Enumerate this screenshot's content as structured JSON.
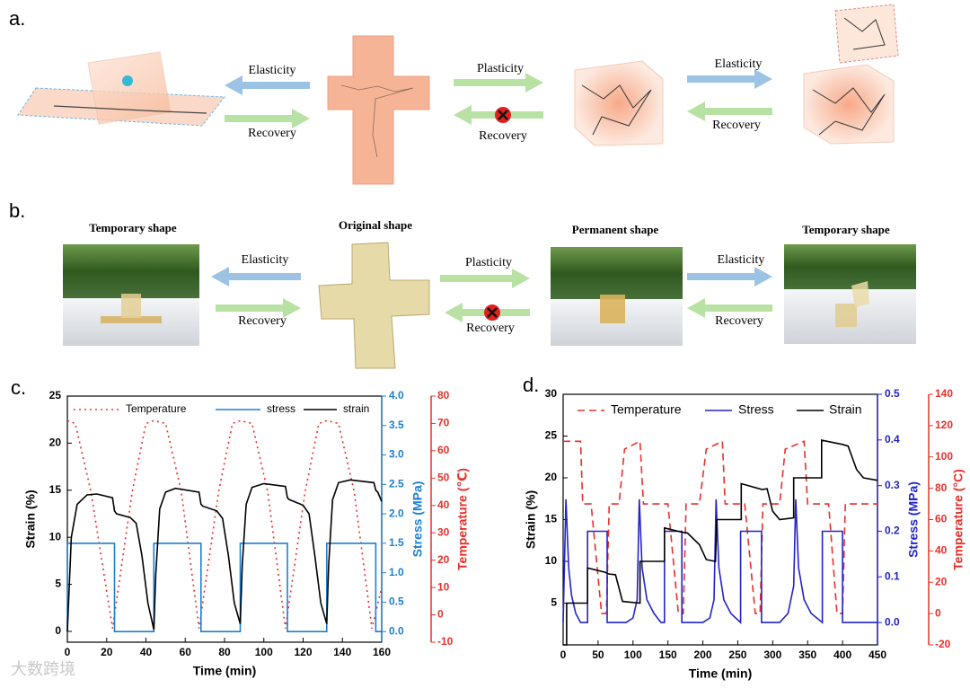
{
  "panels": {
    "a": {
      "label": "a.",
      "arrow_labels": [
        "Elasticity",
        "Recovery",
        "Plasticity",
        "Recovery",
        "Elasticity",
        "Recovery"
      ]
    },
    "b": {
      "label": "b.",
      "shape_labels": [
        "Temporary shape",
        "Original shape",
        "Permanent shape",
        "Temporary shape"
      ],
      "arrow_labels": [
        "Elasticity",
        "Recovery",
        "Plasticity",
        "Recovery",
        "Elasticity",
        "Recovery"
      ]
    }
  },
  "watermark": "大数跨境",
  "chart_data": [
    {
      "type": "line",
      "panel_label": "c.",
      "xlabel": "Time (min)",
      "ylabel": "Strain (%)",
      "y2label": "Stress (MPa)",
      "y3label": "Temperature (℃)",
      "xlim": [
        0,
        160
      ],
      "xticks": [
        0,
        20,
        40,
        60,
        80,
        100,
        120,
        140,
        160
      ],
      "ylim": [
        -1.15,
        25
      ],
      "yticks": [
        0,
        5,
        10,
        15,
        20,
        25
      ],
      "y2lim": [
        -0.18,
        4.0
      ],
      "y2ticks": [
        {
          "value": 0,
          "label": "0.0"
        },
        0.5,
        {
          "value": 1,
          "label": "1.0"
        },
        1.5,
        {
          "value": 2,
          "label": "2.0"
        },
        2.5,
        {
          "value": 3,
          "label": "3.0"
        },
        3.5,
        {
          "value": 4,
          "label": "4.0"
        }
      ],
      "y3lim": [
        -10,
        80
      ],
      "y3ticks": [
        -10,
        0,
        10,
        20,
        30,
        40,
        50,
        60,
        70,
        80
      ],
      "legend": "top",
      "series": [
        {
          "name": "Temperature",
          "color": "#e8302a",
          "dash": "dotted",
          "axis": "y3",
          "x": [
            0,
            4,
            12,
            23,
            33,
            40,
            44,
            50,
            58,
            67,
            77,
            84,
            88,
            94,
            102,
            111,
            121,
            128,
            132,
            138,
            146,
            155,
            160
          ],
          "values": [
            71,
            70,
            45,
            -5,
            45,
            70,
            71,
            70,
            45,
            -5,
            45,
            70,
            71,
            70,
            45,
            -5,
            45,
            70,
            71,
            70,
            45,
            -5,
            10
          ]
        },
        {
          "name": "stress",
          "color": "#1e7fd0",
          "dash": "solid",
          "axis": "y2",
          "x": [
            0,
            0,
            24,
            24,
            44,
            44,
            68,
            68,
            88,
            88,
            112,
            112,
            132,
            132,
            157,
            157,
            160
          ],
          "values": [
            0,
            1.5,
            1.5,
            0,
            0,
            1.5,
            1.5,
            0,
            0,
            1.5,
            1.5,
            0,
            0,
            1.5,
            1.5,
            0,
            0
          ]
        },
        {
          "name": "strain",
          "color": "#000000",
          "dash": "solid",
          "axis": "y",
          "x": [
            0,
            2,
            5,
            10,
            15,
            23,
            24,
            25,
            32,
            35,
            38,
            41,
            44,
            45,
            47,
            50,
            55,
            67,
            68,
            69,
            76,
            79,
            82,
            85,
            88,
            89,
            91,
            94,
            100,
            111,
            112,
            113,
            120,
            123,
            126,
            129,
            132,
            133,
            135,
            138,
            144,
            156,
            157,
            158,
            160
          ],
          "values": [
            0,
            10,
            13.5,
            14.5,
            14.6,
            14.2,
            12.8,
            12.5,
            12.1,
            11.5,
            8,
            3,
            0.2,
            6,
            13,
            14.8,
            15.2,
            14.8,
            13.5,
            13.3,
            12.8,
            12,
            8,
            3,
            0.8,
            7,
            13.5,
            15.3,
            15.7,
            15.4,
            14.2,
            14,
            13.4,
            12.5,
            8,
            3,
            0.8,
            7,
            14,
            15.8,
            16.1,
            15.8,
            15,
            14.8,
            13.8
          ]
        }
      ]
    },
    {
      "type": "line",
      "panel_label": "d.",
      "xlabel": "Time (min)",
      "ylabel": "Strain (%)",
      "y2label": "Stress (MPa)",
      "y3label": "Temperature (°C)",
      "xlim": [
        0,
        450
      ],
      "xticks": [
        0,
        50,
        100,
        150,
        200,
        250,
        300,
        350,
        400,
        450
      ],
      "ylim": [
        0,
        30
      ],
      "yticks": [
        5,
        10,
        15,
        20,
        25,
        30
      ],
      "y2lim": [
        -0.049,
        0.5
      ],
      "y2ticks": [
        {
          "value": 0,
          "label": "0.0"
        },
        0.1,
        0.2,
        0.3,
        0.4,
        0.5
      ],
      "y3lim": [
        -20,
        140
      ],
      "y3ticks": [
        -20,
        0,
        20,
        40,
        60,
        80,
        100,
        120,
        140
      ],
      "legend": "top",
      "series": [
        {
          "name": "Temperature",
          "color": "#e8302a",
          "dash": "dashed",
          "axis": "y3",
          "x": [
            0,
            25,
            28,
            40,
            55,
            62,
            66,
            80,
            88,
            110,
            115,
            150,
            165,
            172,
            176,
            195,
            205,
            228,
            232,
            260,
            275,
            282,
            286,
            310,
            318,
            345,
            350,
            380,
            392,
            400,
            404,
            450
          ],
          "values": [
            110,
            110,
            70,
            70,
            0,
            0,
            70,
            70,
            105,
            110,
            70,
            70,
            0,
            0,
            70,
            70,
            105,
            110,
            70,
            70,
            0,
            0,
            70,
            70,
            105,
            110,
            70,
            70,
            0,
            0,
            70,
            70
          ]
        },
        {
          "name": "Stress",
          "color": "#2323c8",
          "dash": "solid",
          "axis": "y2",
          "x": [
            0,
            4,
            8,
            12,
            18,
            25,
            35,
            35,
            63,
            63,
            90,
            100,
            106,
            109,
            113,
            120,
            130,
            140,
            145,
            145,
            170,
            170,
            200,
            210,
            216,
            219,
            223,
            230,
            240,
            254,
            254,
            284,
            284,
            310,
            322,
            330,
            333,
            337,
            345,
            355,
            371,
            371,
            400,
            400,
            450
          ],
          "values": [
            0,
            0.27,
            0.12,
            0.06,
            0.02,
            0.0,
            0.0,
            0.2,
            0.2,
            0.0,
            0.0,
            0.01,
            0.05,
            0.27,
            0.12,
            0.05,
            0.02,
            0.0,
            0.0,
            0.2,
            0.2,
            0.0,
            0.0,
            0.01,
            0.05,
            0.27,
            0.12,
            0.05,
            0.02,
            0.0,
            0.2,
            0.2,
            0.0,
            0.0,
            0.02,
            0.08,
            0.27,
            0.12,
            0.05,
            0.02,
            0.0,
            0.2,
            0.2,
            0.0,
            0.0
          ]
        },
        {
          "name": "Strain",
          "color": "#000000",
          "dash": "solid",
          "axis": "y",
          "x": [
            0,
            5,
            5,
            35,
            35,
            60,
            65,
            75,
            85,
            110,
            110,
            145,
            145,
            170,
            178,
            195,
            205,
            218,
            220,
            255,
            255,
            285,
            292,
            300,
            310,
            330,
            330,
            370,
            370,
            400,
            408,
            420,
            430,
            450
          ],
          "values": [
            0,
            0,
            5,
            5,
            9.2,
            8.7,
            8.5,
            8.4,
            5.2,
            5,
            10,
            10,
            14,
            13.5,
            13.4,
            12,
            10.2,
            10,
            15,
            15,
            19.3,
            18.6,
            18.7,
            16,
            15,
            15.2,
            20,
            20,
            24.5,
            24,
            23.8,
            21,
            20,
            19.7
          ]
        }
      ]
    }
  ]
}
